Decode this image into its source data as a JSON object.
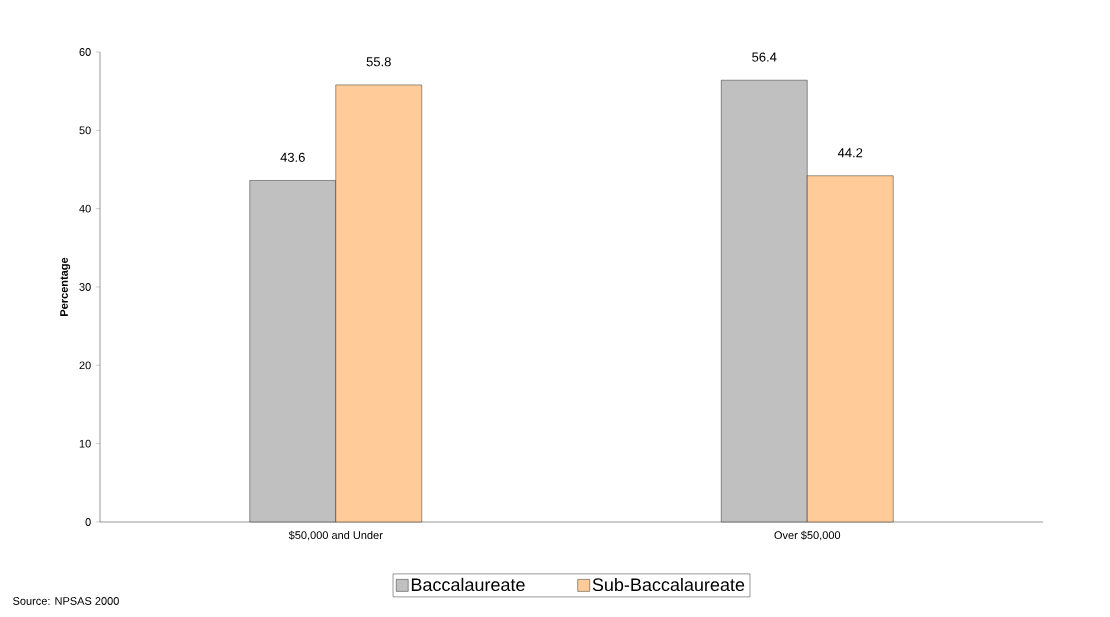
{
  "chart_data": {
    "type": "bar",
    "categories": [
      "$50,000 and Under",
      "Over $50,000"
    ],
    "series": [
      {
        "name": "Baccalaureate",
        "color": "#c0c0c0",
        "values": [
          43.6,
          56.4
        ]
      },
      {
        "name": "Sub-Baccalaureate",
        "color": "#ffcc99",
        "values": [
          55.8,
          44.2
        ]
      }
    ],
    "ylabel": "Percentage",
    "ylim": [
      0,
      60
    ],
    "yticks": [
      0,
      10,
      20,
      30,
      40,
      50,
      60
    ],
    "data_labels": true,
    "grid": false,
    "legend": "bottom",
    "annotations": [
      "Source:  NPSAS 2000"
    ]
  }
}
